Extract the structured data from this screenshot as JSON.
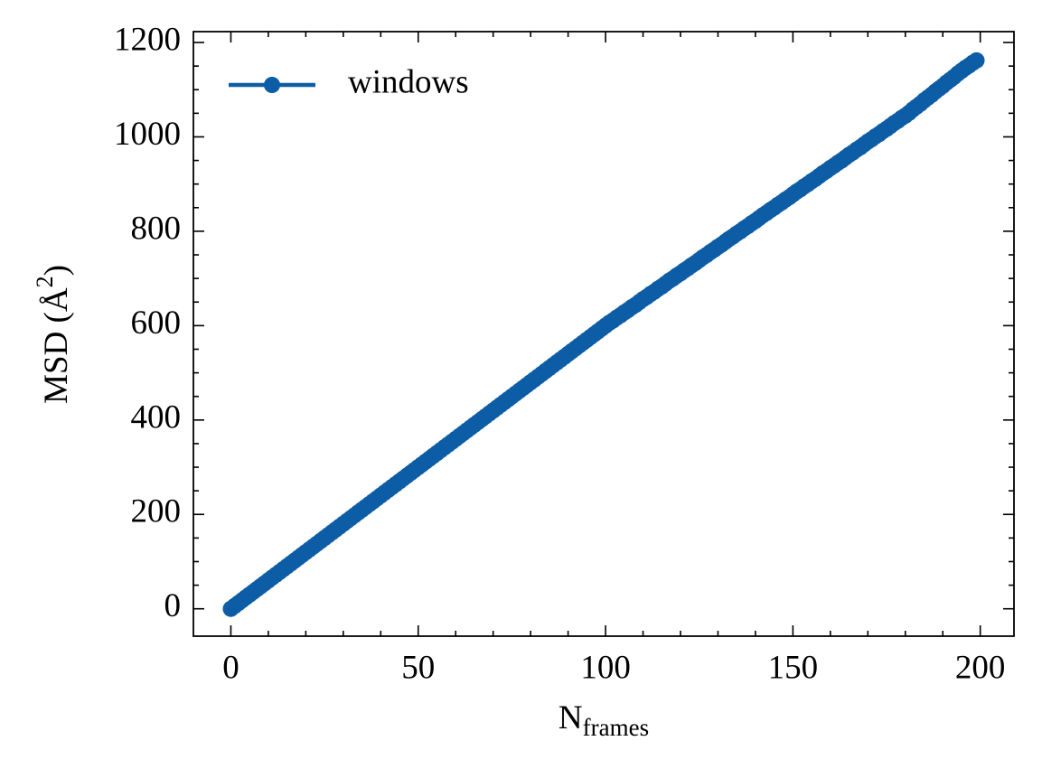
{
  "chart_data": {
    "type": "line",
    "xlabel": {
      "text": "N",
      "subscript": "frames"
    },
    "ylabel": {
      "text": "MSD (Å",
      "superscript": "2",
      "end": ")"
    },
    "x": [
      0,
      1,
      2,
      3,
      4,
      5,
      6,
      7,
      8,
      9,
      10,
      11,
      12,
      13,
      14,
      15,
      16,
      17,
      18,
      19,
      20,
      21,
      22,
      23,
      24,
      25,
      26,
      27,
      28,
      29,
      30,
      31,
      32,
      33,
      34,
      35,
      36,
      37,
      38,
      39,
      40,
      41,
      42,
      43,
      44,
      45,
      46,
      47,
      48,
      49,
      50,
      51,
      52,
      53,
      54,
      55,
      56,
      57,
      58,
      59,
      60,
      61,
      62,
      63,
      64,
      65,
      66,
      67,
      68,
      69,
      70,
      71,
      72,
      73,
      74,
      75,
      76,
      77,
      78,
      79,
      80,
      81,
      82,
      83,
      84,
      85,
      86,
      87,
      88,
      89,
      90,
      91,
      92,
      93,
      94,
      95,
      96,
      97,
      98,
      99,
      100,
      101,
      102,
      103,
      104,
      105,
      106,
      107,
      108,
      109,
      110,
      111,
      112,
      113,
      114,
      115,
      116,
      117,
      118,
      119,
      120,
      121,
      122,
      123,
      124,
      125,
      126,
      127,
      128,
      129,
      130,
      131,
      132,
      133,
      134,
      135,
      136,
      137,
      138,
      139,
      140,
      141,
      142,
      143,
      144,
      145,
      146,
      147,
      148,
      149,
      150,
      151,
      152,
      153,
      154,
      155,
      156,
      157,
      158,
      159,
      160,
      161,
      162,
      163,
      164,
      165,
      166,
      167,
      168,
      169,
      170,
      171,
      172,
      173,
      174,
      175,
      176,
      177,
      178,
      179,
      180,
      181,
      182,
      183,
      184,
      185,
      186,
      187,
      188,
      189,
      190,
      191,
      192,
      193,
      194,
      195,
      196,
      197,
      198,
      199
    ],
    "series": [
      {
        "name": "windows",
        "color": "#0c5da5",
        "values": [
          0,
          6,
          12,
          18,
          24,
          30,
          36,
          42,
          48,
          54,
          60,
          66,
          72,
          78,
          84,
          90,
          96,
          102,
          108,
          114,
          120,
          126,
          132,
          138,
          144,
          150,
          156,
          162,
          168,
          174,
          180,
          186,
          192,
          198,
          204,
          210,
          216,
          222,
          228,
          234,
          240,
          246,
          252,
          258,
          264,
          270,
          276,
          282,
          288,
          294,
          300,
          306,
          312,
          318,
          324,
          330,
          336,
          342,
          348,
          354,
          360,
          366,
          372,
          378,
          384,
          390,
          396,
          402,
          408,
          414,
          420,
          426,
          432,
          438,
          444,
          450,
          456,
          462,
          468,
          474,
          480,
          486,
          492,
          498,
          504,
          510,
          516,
          522,
          528,
          534,
          540,
          546,
          552,
          558,
          564,
          570,
          576,
          582,
          588,
          594,
          600,
          606,
          611,
          617,
          622,
          628,
          633,
          639,
          644,
          650,
          656,
          661,
          667,
          672,
          678,
          683,
          689,
          695,
          700,
          706,
          711,
          717,
          722,
          728,
          733,
          739,
          745,
          750,
          756,
          761,
          767,
          772,
          778,
          784,
          789,
          795,
          800,
          806,
          811,
          817,
          822,
          828,
          834,
          839,
          845,
          850,
          856,
          861,
          867,
          872,
          878,
          884,
          889,
          895,
          900,
          906,
          911,
          917,
          923,
          928,
          934,
          939,
          945,
          950,
          956,
          962,
          967,
          973,
          978,
          984,
          990,
          995,
          1001,
          1006,
          1012,
          1017,
          1023,
          1029,
          1034,
          1040,
          1045,
          1051,
          1058,
          1064,
          1070,
          1077,
          1083,
          1089,
          1096,
          1102,
          1108,
          1115,
          1121,
          1127,
          1134,
          1140,
          1146,
          1151,
          1157,
          1162
        ]
      }
    ],
    "xlim": [
      -10,
      209
    ],
    "ylim": [
      -58,
      1223
    ],
    "xticks": [
      0,
      50,
      100,
      150,
      200
    ],
    "yticks": [
      0,
      200,
      400,
      600,
      800,
      1000,
      1200
    ],
    "xminorticks": [
      10,
      20,
      30,
      40,
      60,
      70,
      80,
      90,
      110,
      120,
      130,
      140,
      160,
      170,
      180,
      190
    ],
    "yminorticks": [
      50,
      100,
      150,
      250,
      300,
      350,
      450,
      500,
      550,
      650,
      700,
      750,
      850,
      900,
      950,
      1050,
      1100,
      1150
    ],
    "legend": "upper left"
  }
}
